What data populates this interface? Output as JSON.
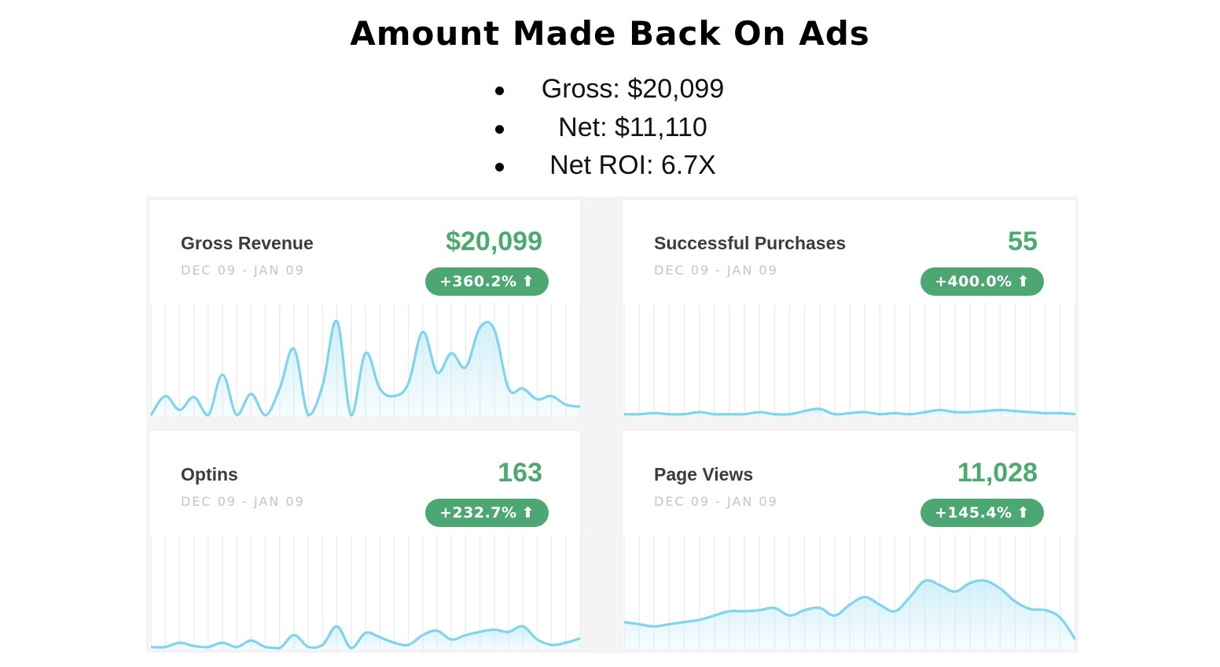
{
  "title": "Amount Made Back On Ads",
  "bullets": [
    {
      "text": "Gross: $20,099"
    },
    {
      "text": "Net: $11,110"
    },
    {
      "text": "Net ROI: 6.7X"
    }
  ],
  "colors": {
    "value_green": "#4daa6e",
    "badge_green": "#4da772",
    "line_blue": "#80d4ec",
    "fill_blue": "#c9edf9",
    "gridline": "#ececec"
  },
  "cards": [
    {
      "label": "Gross Revenue",
      "date": "DEC 09 - JAN 09",
      "value": "$20,099",
      "change": "+360.2%",
      "arrow": "⬆"
    },
    {
      "label": "Successful Purchases",
      "date": "DEC 09 - JAN 09",
      "value": "55",
      "change": "+400.0%",
      "arrow": "⬆"
    },
    {
      "label": "Optins",
      "date": "DEC 09 - JAN 09",
      "value": "163",
      "change": "+232.7%",
      "arrow": "⬆"
    },
    {
      "label": "Page Views",
      "date": "DEC 09 - JAN 09",
      "value": "11,028",
      "change": "+145.4%",
      "arrow": "⬆"
    }
  ],
  "chart_data": [
    {
      "type": "area",
      "title": "Gross Revenue",
      "ylim": [
        0,
        100
      ],
      "x": [
        0,
        1,
        2,
        3,
        4,
        5,
        6,
        7,
        8,
        9,
        10,
        11,
        12,
        13,
        14,
        15,
        16,
        17,
        18,
        19,
        20,
        21,
        22,
        23,
        24,
        25,
        26,
        27,
        28,
        29,
        30
      ],
      "values": [
        0,
        18,
        5,
        17,
        0,
        38,
        0,
        20,
        0,
        25,
        62,
        0,
        28,
        88,
        0,
        58,
        25,
        18,
        30,
        78,
        40,
        58,
        45,
        82,
        80,
        25,
        25,
        15,
        18,
        10,
        8
      ]
    },
    {
      "type": "area",
      "title": "Successful Purchases",
      "ylim": [
        0,
        100
      ],
      "x": [
        0,
        1,
        2,
        3,
        4,
        5,
        6,
        7,
        8,
        9,
        10,
        11,
        12,
        13,
        14,
        15,
        16,
        17,
        18,
        19,
        20,
        21,
        22,
        23,
        24,
        25,
        26,
        27,
        28,
        29,
        30
      ],
      "values": [
        1,
        1,
        2,
        1,
        1,
        3,
        1,
        1,
        1,
        3,
        1,
        1,
        4,
        6,
        1,
        2,
        3,
        1,
        2,
        1,
        3,
        5,
        3,
        3,
        4,
        5,
        4,
        3,
        2,
        2,
        1
      ]
    },
    {
      "type": "area",
      "title": "Optins",
      "ylim": [
        0,
        100
      ],
      "x": [
        0,
        1,
        2,
        3,
        4,
        5,
        6,
        7,
        8,
        9,
        10,
        11,
        12,
        13,
        14,
        15,
        16,
        17,
        18,
        19,
        20,
        21,
        22,
        23,
        24,
        25,
        26,
        27,
        28,
        29,
        30
      ],
      "values": [
        1,
        1,
        5,
        2,
        1,
        5,
        1,
        7,
        1,
        0,
        12,
        1,
        3,
        20,
        0,
        14,
        10,
        5,
        3,
        12,
        16,
        8,
        12,
        15,
        17,
        15,
        20,
        8,
        3,
        5,
        9
      ]
    },
    {
      "type": "area",
      "title": "Page Views",
      "ylim": [
        0,
        100
      ],
      "x": [
        0,
        1,
        2,
        3,
        4,
        5,
        6,
        7,
        8,
        9,
        10,
        11,
        12,
        13,
        14,
        15,
        16,
        17,
        18,
        19,
        20,
        21,
        22,
        23,
        24,
        25,
        26,
        27,
        28,
        29,
        30
      ],
      "values": [
        24,
        22,
        20,
        22,
        24,
        26,
        30,
        34,
        34,
        35,
        37,
        30,
        35,
        37,
        30,
        40,
        47,
        40,
        34,
        47,
        62,
        58,
        52,
        60,
        62,
        55,
        43,
        36,
        35,
        28,
        8
      ]
    }
  ]
}
